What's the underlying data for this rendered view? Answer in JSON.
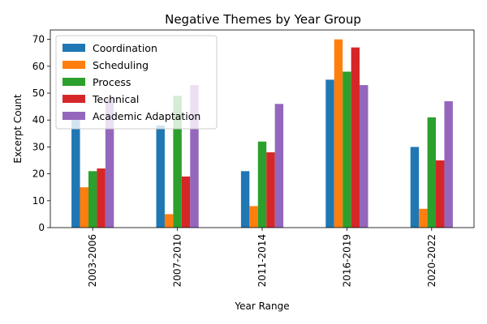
{
  "chart_data": {
    "type": "bar",
    "title": "Negative Themes by Year Group",
    "xlabel": "Year Range",
    "ylabel": "Excerpt Count",
    "categories": [
      "2003-2006",
      "2007-2010",
      "2011-2014",
      "2016-2019",
      "2020-2022"
    ],
    "series": [
      {
        "name": "Coordination",
        "color": "#1f77b4",
        "values": [
          43,
          38,
          21,
          55,
          30
        ]
      },
      {
        "name": "Scheduling",
        "color": "#ff7f0e",
        "values": [
          15,
          5,
          8,
          70,
          7
        ]
      },
      {
        "name": "Process",
        "color": "#2ca02c",
        "values": [
          21,
          49,
          32,
          58,
          41
        ]
      },
      {
        "name": "Technical",
        "color": "#d62728",
        "values": [
          22,
          19,
          28,
          67,
          25
        ]
      },
      {
        "name": "Academic Adaptation",
        "color": "#9467bd",
        "values": [
          48,
          53,
          46,
          53,
          47
        ]
      }
    ],
    "ylim": [
      0,
      73.5
    ],
    "yticks": [
      0,
      10,
      20,
      30,
      40,
      50,
      60,
      70
    ],
    "grid": false,
    "legend_position": "top-left",
    "legend_opacity": 0.8,
    "xtick_rotation": "vertical"
  }
}
